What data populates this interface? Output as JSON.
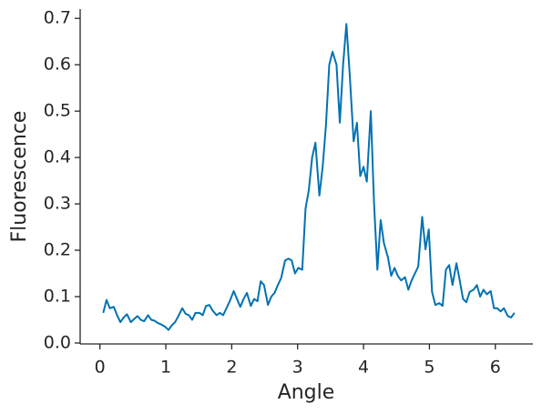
{
  "chart_data": {
    "type": "line",
    "x_label": "Angle",
    "y_label": "Fluorescence",
    "xlim": [
      -0.3,
      6.57
    ],
    "ylim": [
      -0.002,
      0.72
    ],
    "xticks": [
      0,
      1,
      2,
      3,
      4,
      5,
      6
    ],
    "yticks": [
      {
        "value": 0,
        "label": "0.0"
      },
      0.1,
      0.2,
      0.3,
      0.4,
      0.5,
      0.6,
      0.7
    ],
    "x": [
      0.05,
      0.1,
      0.15,
      0.21,
      0.26,
      0.31,
      0.36,
      0.41,
      0.47,
      0.52,
      0.57,
      0.62,
      0.67,
      0.73,
      0.78,
      0.83,
      0.88,
      0.93,
      0.99,
      1.04,
      1.09,
      1.14,
      1.19,
      1.25,
      1.3,
      1.35,
      1.4,
      1.45,
      1.51,
      1.56,
      1.61,
      1.66,
      1.71,
      1.77,
      1.82,
      1.87,
      1.92,
      1.97,
      2.03,
      2.08,
      2.13,
      2.18,
      2.23,
      2.29,
      2.34,
      2.39,
      2.44,
      2.49,
      2.55,
      2.6,
      2.65,
      2.7,
      2.75,
      2.81,
      2.86,
      2.91,
      2.96,
      3.01,
      3.07,
      3.12,
      3.17,
      3.22,
      3.27,
      3.33,
      3.38,
      3.43,
      3.48,
      3.53,
      3.59,
      3.64,
      3.69,
      3.74,
      3.79,
      3.85,
      3.9,
      3.95,
      4.0,
      4.05,
      4.11,
      4.16,
      4.21,
      4.26,
      4.31,
      4.37,
      4.42,
      4.47,
      4.52,
      4.57,
      4.63,
      4.68,
      4.73,
      4.78,
      4.83,
      4.89,
      4.94,
      4.99,
      5.04,
      5.09,
      5.15,
      5.2,
      5.25,
      5.3,
      5.35,
      5.41,
      5.46,
      5.51,
      5.56,
      5.61,
      5.67,
      5.72,
      5.77,
      5.82,
      5.87,
      5.93,
      5.98,
      6.03,
      6.08,
      6.13,
      6.19,
      6.24,
      6.29
    ],
    "series": [
      {
        "name": "Fluorescence",
        "color": "#0072b2",
        "values": [
          0.065,
          0.093,
          0.075,
          0.078,
          0.06,
          0.045,
          0.055,
          0.062,
          0.045,
          0.052,
          0.058,
          0.05,
          0.047,
          0.06,
          0.05,
          0.048,
          0.043,
          0.04,
          0.035,
          0.028,
          0.038,
          0.045,
          0.058,
          0.075,
          0.063,
          0.06,
          0.05,
          0.065,
          0.065,
          0.06,
          0.08,
          0.082,
          0.07,
          0.06,
          0.065,
          0.06,
          0.075,
          0.09,
          0.112,
          0.095,
          0.078,
          0.095,
          0.108,
          0.08,
          0.095,
          0.09,
          0.133,
          0.125,
          0.082,
          0.1,
          0.108,
          0.125,
          0.14,
          0.178,
          0.182,
          0.178,
          0.15,
          0.162,
          0.158,
          0.29,
          0.33,
          0.4,
          0.432,
          0.318,
          0.38,
          0.47,
          0.6,
          0.628,
          0.6,
          0.475,
          0.6,
          0.688,
          0.58,
          0.435,
          0.475,
          0.36,
          0.38,
          0.348,
          0.5,
          0.3,
          0.158,
          0.265,
          0.215,
          0.185,
          0.145,
          0.162,
          0.145,
          0.135,
          0.142,
          0.115,
          0.135,
          0.15,
          0.165,
          0.272,
          0.202,
          0.245,
          0.11,
          0.082,
          0.086,
          0.08,
          0.158,
          0.168,
          0.125,
          0.172,
          0.135,
          0.095,
          0.088,
          0.11,
          0.115,
          0.125,
          0.1,
          0.115,
          0.105,
          0.112,
          0.075,
          0.075,
          0.068,
          0.075,
          0.058,
          0.055,
          0.065
        ]
      }
    ]
  }
}
